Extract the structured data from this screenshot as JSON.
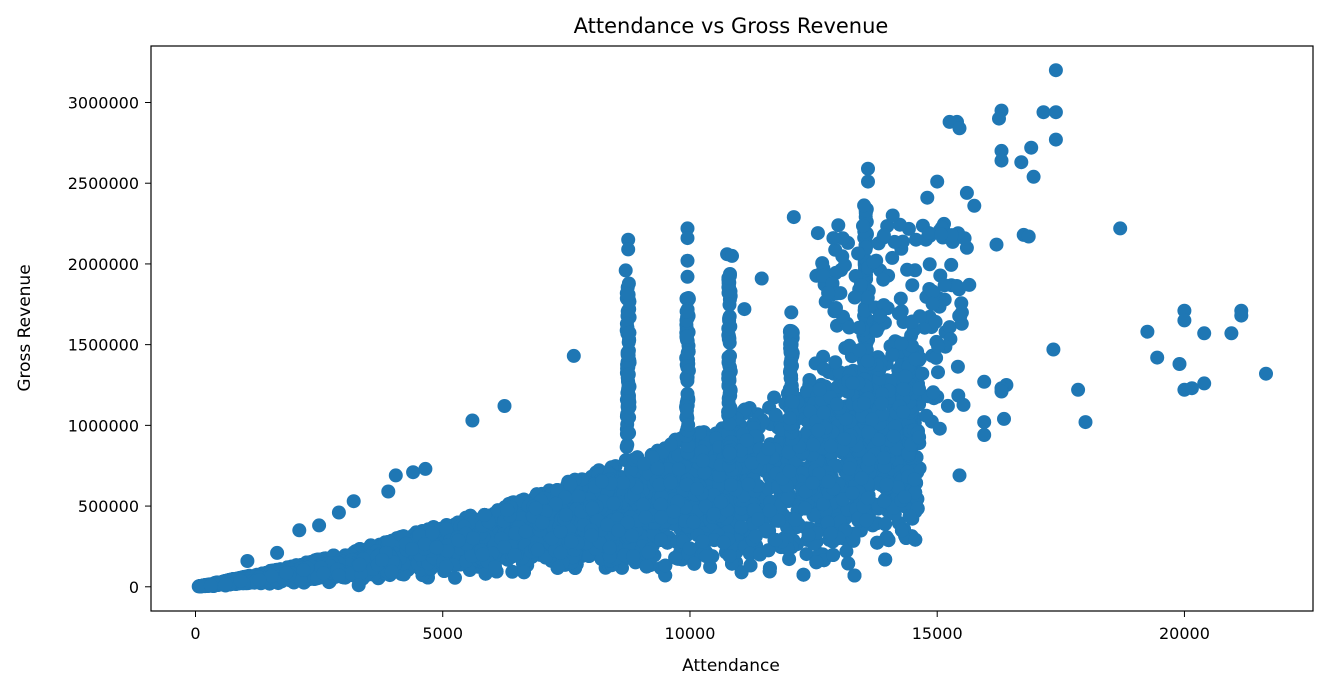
{
  "chart_data": {
    "type": "scatter",
    "title": "Attendance vs Gross Revenue",
    "xlabel": "Attendance",
    "ylabel": "Gross Revenue",
    "xlim": [
      -900,
      22600
    ],
    "ylim": [
      -150000,
      3350000
    ],
    "xticks": [
      0,
      5000,
      10000,
      15000,
      20000
    ],
    "yticks": [
      0,
      500000,
      1000000,
      1500000,
      2000000,
      2500000,
      3000000
    ],
    "color": "#1f77b4",
    "grid": false,
    "legend": "none",
    "outliers": [
      [
        17400,
        3200000
      ],
      [
        16300,
        2950000
      ],
      [
        17150,
        2940000
      ],
      [
        17400,
        2940000
      ],
      [
        15400,
        2880000
      ],
      [
        15250,
        2880000
      ],
      [
        15450,
        2840000
      ],
      [
        16250,
        2900000
      ],
      [
        16900,
        2720000
      ],
      [
        17400,
        2770000
      ],
      [
        16300,
        2700000
      ],
      [
        16700,
        2630000
      ],
      [
        16300,
        2640000
      ],
      [
        16950,
        2540000
      ],
      [
        13600,
        2590000
      ],
      [
        13600,
        2510000
      ],
      [
        15000,
        2510000
      ],
      [
        15750,
        2360000
      ],
      [
        14800,
        2410000
      ],
      [
        15600,
        2440000
      ],
      [
        12100,
        2290000
      ],
      [
        14100,
        2300000
      ],
      [
        13000,
        2240000
      ],
      [
        12900,
        2160000
      ],
      [
        16200,
        2120000
      ],
      [
        16750,
        2180000
      ],
      [
        16850,
        2170000
      ],
      [
        18700,
        2220000
      ],
      [
        9950,
        2220000
      ],
      [
        9950,
        2160000
      ],
      [
        8750,
        2150000
      ],
      [
        8750,
        2090000
      ],
      [
        10750,
        2060000
      ],
      [
        10850,
        2050000
      ],
      [
        9950,
        2020000
      ],
      [
        9950,
        1920000
      ],
      [
        8700,
        1960000
      ],
      [
        11450,
        1910000
      ],
      [
        11100,
        1720000
      ],
      [
        12050,
        1700000
      ],
      [
        15650,
        1870000
      ],
      [
        15500,
        1700000
      ],
      [
        16400,
        1250000
      ],
      [
        15950,
        1270000
      ],
      [
        16300,
        1230000
      ],
      [
        16300,
        1210000
      ],
      [
        16350,
        1040000
      ],
      [
        15950,
        1020000
      ],
      [
        15950,
        940000
      ],
      [
        15450,
        690000
      ],
      [
        17350,
        1470000
      ],
      [
        17850,
        1220000
      ],
      [
        18000,
        1020000
      ],
      [
        19250,
        1580000
      ],
      [
        19450,
        1420000
      ],
      [
        19900,
        1380000
      ],
      [
        20000,
        1710000
      ],
      [
        20000,
        1650000
      ],
      [
        20400,
        1570000
      ],
      [
        20000,
        1220000
      ],
      [
        20150,
        1230000
      ],
      [
        20400,
        1260000
      ],
      [
        20950,
        1570000
      ],
      [
        21150,
        1710000
      ],
      [
        21150,
        1680000
      ],
      [
        21650,
        1320000
      ],
      [
        7650,
        1430000
      ],
      [
        6250,
        1120000
      ],
      [
        5600,
        1030000
      ],
      [
        4650,
        730000
      ],
      [
        4400,
        710000
      ],
      [
        4050,
        690000
      ],
      [
        3900,
        590000
      ],
      [
        3200,
        530000
      ],
      [
        2900,
        460000
      ],
      [
        2500,
        380000
      ],
      [
        2100,
        350000
      ],
      [
        1650,
        210000
      ],
      [
        1050,
        160000
      ],
      [
        3300,
        10000
      ],
      [
        10800,
        190000
      ],
      [
        8850,
        190000
      ],
      [
        12850,
        330000
      ],
      [
        12400,
        320000
      ],
      [
        7600,
        280000
      ],
      [
        9700,
        180000
      ]
    ]
  }
}
